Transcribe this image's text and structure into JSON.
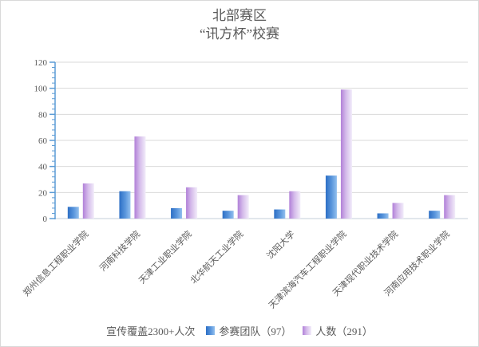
{
  "title": {
    "line1": "北部赛区",
    "line2": "“讯方杯”校赛"
  },
  "legend": {
    "prefix": "宣传覆盖2300+人次",
    "series1_label": "参赛团队（97）",
    "series2_label": "人数（291）"
  },
  "colors": {
    "axis_blue": "#5b9bd5",
    "gridline": "#d9d9d9",
    "x_axis_line": "#c6cfda",
    "text_gray": "#595959",
    "bar1_start": "#2d6fc5",
    "bar1_mid": "#5b97dd",
    "bar1_end": "#93c0ee",
    "bar2_start": "#b180d8",
    "bar2_mid": "#d4baea",
    "bar2_end": "#f2ecfa"
  },
  "chart_data": {
    "type": "bar",
    "title": "北部赛区 “讯方杯”校赛",
    "xlabel": "",
    "ylabel": "",
    "ylim": [
      0,
      120
    ],
    "ytick_step": 20,
    "ytick_minor_step": 4,
    "grid": true,
    "legend_position": "bottom",
    "categories": [
      "郑州信息工程职业学院",
      "河南科技学院",
      "天津工业职业学院",
      "北华航天工业学院",
      "沈阳大学",
      "天津滨海汽车工程职业学院",
      "天津现代职业技术学院",
      "河南应用技术职业学院"
    ],
    "series": [
      {
        "name": "参赛团队（97）",
        "values": [
          9,
          21,
          8,
          6,
          7,
          33,
          4,
          6
        ]
      },
      {
        "name": "人数（291）",
        "values": [
          27,
          63,
          24,
          18,
          21,
          99,
          12,
          18
        ]
      }
    ]
  }
}
